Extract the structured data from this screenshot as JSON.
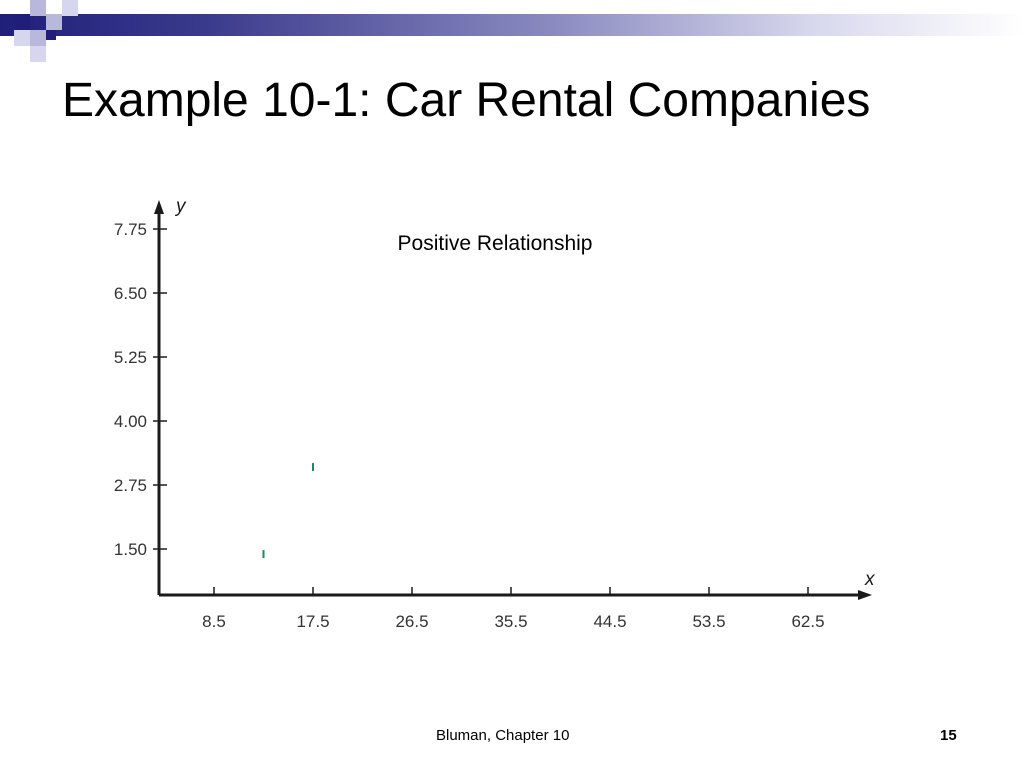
{
  "slide": {
    "title": "Example 10-1: Car Rental Companies",
    "footer": "Bluman, Chapter 10",
    "page_number": "15",
    "colors": {
      "header_dark": "#1f1f7a",
      "header_mid": "#8d8dc2",
      "header_light": "#d9d9ee",
      "axis": "#1a1a1a",
      "point": "#1a8a6a"
    }
  },
  "chart_data": {
    "type": "scatter",
    "title": "Positive Relationship",
    "xlabel": "x",
    "ylabel": "y",
    "x_ticks": [
      "8.5",
      "17.5",
      "26.5",
      "35.5",
      "44.5",
      "53.5",
      "62.5"
    ],
    "y_ticks": [
      "1.50",
      "2.75",
      "4.00",
      "5.25",
      "6.50",
      "7.75"
    ],
    "xlim": [
      0,
      68
    ],
    "ylim": [
      0.6,
      8.6
    ],
    "grid": false,
    "series": [
      {
        "points": [
          {
            "x": 13.0,
            "y": 1.4
          },
          {
            "x": 17.5,
            "y": 3.1
          }
        ]
      }
    ]
  }
}
